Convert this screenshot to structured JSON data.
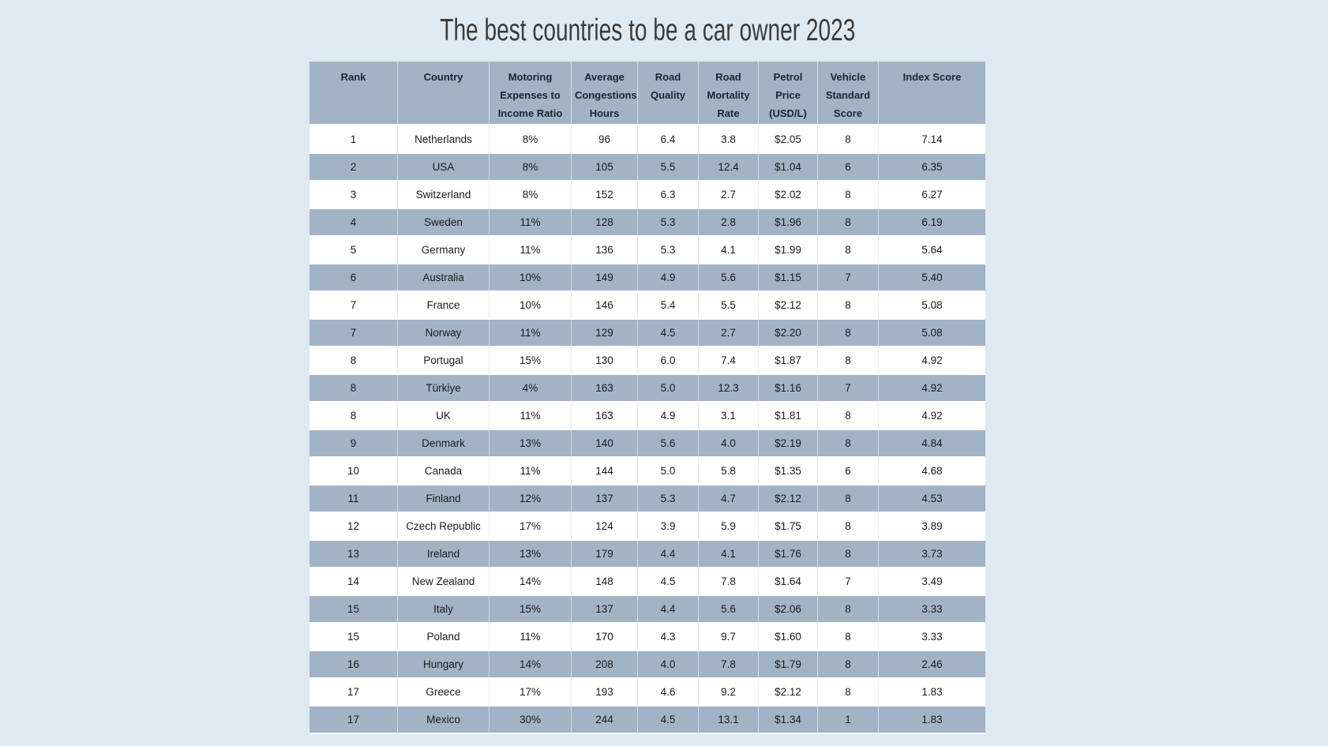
{
  "page": {
    "title": "The best countries to be a car owner 2023",
    "background_color": "#dee9f1"
  },
  "colors": {
    "header_row_bg": "#a2b3c6",
    "stripe_row_bg": "#a2b3c6",
    "plain_row_bg": "#ffffff",
    "body_text": "#1b1b1b",
    "title_text": "#3c3c3c"
  },
  "chart_data": {
    "type": "table",
    "title": "The best countries to be a car owner 2023",
    "columns": [
      "Rank",
      "Country",
      "Motoring Expenses to Income Ratio",
      "Average Congestions Hours",
      "Road Quality",
      "Road Mortality Rate",
      "Petrol Price (USD/L)",
      "Vehicle Standard Score",
      "Index Score"
    ],
    "rows": [
      [
        "1",
        "Netherlands",
        "8%",
        "96",
        "6.4",
        "3.8",
        "$2.05",
        "8",
        "7.14"
      ],
      [
        "2",
        "USA",
        "8%",
        "105",
        "5.5",
        "12.4",
        "$1.04",
        "6",
        "6.35"
      ],
      [
        "3",
        "Switzerland",
        "8%",
        "152",
        "6.3",
        "2.7",
        "$2.02",
        "8",
        "6.27"
      ],
      [
        "4",
        "Sweden",
        "11%",
        "128",
        "5.3",
        "2.8",
        "$1.96",
        "8",
        "6.19"
      ],
      [
        "5",
        "Germany",
        "11%",
        "136",
        "5.3",
        "4.1",
        "$1.99",
        "8",
        "5.64"
      ],
      [
        "6",
        "Australia",
        "10%",
        "149",
        "4.9",
        "5.6",
        "$1.15",
        "7",
        "5.40"
      ],
      [
        "7",
        "France",
        "10%",
        "146",
        "5.4",
        "5.5",
        "$2.12",
        "8",
        "5.08"
      ],
      [
        "7",
        "Norway",
        "11%",
        "129",
        "4.5",
        "2.7",
        "$2.20",
        "8",
        "5.08"
      ],
      [
        "8",
        "Portugal",
        "15%",
        "130",
        "6.0",
        "7.4",
        "$1.87",
        "8",
        "4.92"
      ],
      [
        "8",
        "Türkiye",
        "4%",
        "163",
        "5.0",
        "12.3",
        "$1.16",
        "7",
        "4.92"
      ],
      [
        "8",
        "UK",
        "11%",
        "163",
        "4.9",
        "3.1",
        "$1.81",
        "8",
        "4.92"
      ],
      [
        "9",
        "Denmark",
        "13%",
        "140",
        "5.6",
        "4.0",
        "$2.19",
        "8",
        "4.84"
      ],
      [
        "10",
        "Canada",
        "11%",
        "144",
        "5.0",
        "5.8",
        "$1.35",
        "6",
        "4.68"
      ],
      [
        "11",
        "Finland",
        "12%",
        "137",
        "5.3",
        "4.7",
        "$2.12",
        "8",
        "4.53"
      ],
      [
        "12",
        "Czech Republic",
        "17%",
        "124",
        "3.9",
        "5.9",
        "$1.75",
        "8",
        "3.89"
      ],
      [
        "13",
        "Ireland",
        "13%",
        "179",
        "4.4",
        "4.1",
        "$1.76",
        "8",
        "3.73"
      ],
      [
        "14",
        "New Zealand",
        "14%",
        "148",
        "4.5",
        "7.8",
        "$1.64",
        "7",
        "3.49"
      ],
      [
        "15",
        "Italy",
        "15%",
        "137",
        "4.4",
        "5.6",
        "$2.06",
        "8",
        "3.33"
      ],
      [
        "15",
        "Poland",
        "11%",
        "170",
        "4.3",
        "9.7",
        "$1.60",
        "8",
        "3.33"
      ],
      [
        "16",
        "Hungary",
        "14%",
        "208",
        "4.0",
        "7.8",
        "$1.79",
        "8",
        "2.46"
      ],
      [
        "17",
        "Greece",
        "17%",
        "193",
        "4.6",
        "9.2",
        "$2.12",
        "8",
        "1.83"
      ],
      [
        "17",
        "Mexico",
        "30%",
        "244",
        "4.5",
        "13.1",
        "$1.34",
        "1",
        "1.83"
      ]
    ]
  }
}
